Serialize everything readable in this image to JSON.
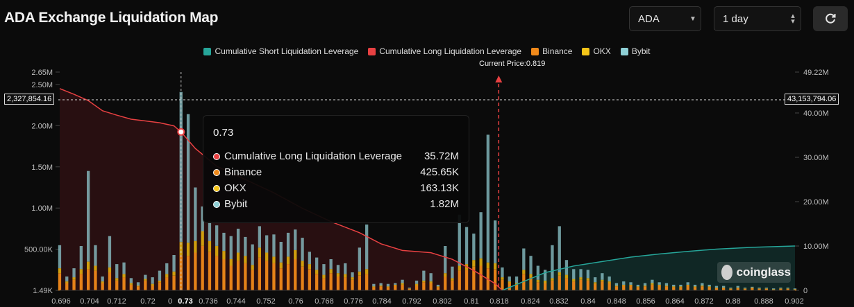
{
  "page_title": "ADA Exchange Liquidation Map",
  "controls": {
    "coin_select": "ADA",
    "period_select": "1 day"
  },
  "icons": {
    "refresh": "refresh-icon",
    "select_arrow": "chevron-down-icon",
    "stepper": "up-down-icon"
  },
  "legend": [
    {
      "label": "Cumulative Short Liquidation Leverage",
      "color": "#26a69a"
    },
    {
      "label": "Cumulative Long Liquidation Leverage",
      "color": "#e84142"
    },
    {
      "label": "Binance",
      "color": "#f0891a"
    },
    {
      "label": "OKX",
      "color": "#f5c518"
    },
    {
      "label": "Bybit",
      "color": "#8fd0d6"
    }
  ],
  "current_price_label": "Current Price:0.819",
  "crosshair": {
    "left_value": "2,327,854.16",
    "right_value": "43,153,794.06",
    "x_label": "0.73"
  },
  "tooltip": {
    "header": "0.73",
    "rows": [
      {
        "label": "Cumulative Long Liquidation Leverage",
        "value": "35.72M",
        "color": "#e84142"
      },
      {
        "label": "Binance",
        "value": "425.65K",
        "color": "#f0891a"
      },
      {
        "label": "OKX",
        "value": "163.13K",
        "color": "#f5c518"
      },
      {
        "label": "Bybit",
        "value": "1.82M",
        "color": "#8fd0d6"
      }
    ]
  },
  "watermark": "coinglass",
  "chart_data": {
    "type": "bar",
    "x_range": [
      0.696,
      0.902
    ],
    "x_tick_labels": [
      "0.696",
      "0.704",
      "0.712",
      "0.72",
      "0",
      "0.73",
      "0.736",
      "0.744",
      "0.752",
      "0.76",
      "0.768",
      "0.776",
      "0.784",
      "0.792",
      "0.802",
      "0.81",
      "0.818",
      "0.824",
      "0.832",
      "0.84",
      "0.848",
      "0.856",
      "0.864",
      "0.872",
      "0.88",
      "0.888",
      "0.902"
    ],
    "y_left_ticks": [
      "1.49K",
      "500.00K",
      "1.00M",
      "1.50M",
      "2.00M",
      "2.50M",
      "2.65M"
    ],
    "y_right_ticks": [
      "0",
      "10.00M",
      "20.00M",
      "30.00M",
      "40.00M",
      "49.22M"
    ],
    "y_left_range": [
      1490,
      2650000
    ],
    "y_right_range": [
      0,
      49220000
    ],
    "current_price": 0.819,
    "stack_order": [
      "Binance",
      "OKX",
      "Bybit"
    ],
    "bars": [
      {
        "x": 0.696,
        "binance": 210000,
        "okx": 60000,
        "bybit": 280000
      },
      {
        "x": 0.698,
        "binance": 90000,
        "okx": 20000,
        "bybit": 60000
      },
      {
        "x": 0.7,
        "binance": 130000,
        "okx": 30000,
        "bybit": 110000
      },
      {
        "x": 0.702,
        "binance": 200000,
        "okx": 60000,
        "bybit": 280000
      },
      {
        "x": 0.704,
        "binance": 260000,
        "okx": 90000,
        "bybit": 1100000
      },
      {
        "x": 0.706,
        "binance": 240000,
        "okx": 60000,
        "bybit": 250000
      },
      {
        "x": 0.708,
        "binance": 90000,
        "okx": 20000,
        "bybit": 60000
      },
      {
        "x": 0.71,
        "binance": 220000,
        "okx": 60000,
        "bybit": 380000
      },
      {
        "x": 0.712,
        "binance": 120000,
        "okx": 30000,
        "bybit": 170000
      },
      {
        "x": 0.714,
        "binance": 160000,
        "okx": 40000,
        "bybit": 140000
      },
      {
        "x": 0.716,
        "binance": 70000,
        "okx": 20000,
        "bybit": 60000
      },
      {
        "x": 0.718,
        "binance": 50000,
        "okx": 10000,
        "bybit": 40000
      },
      {
        "x": 0.72,
        "binance": 120000,
        "okx": 20000,
        "bybit": 50000
      },
      {
        "x": 0.722,
        "binance": 60000,
        "okx": 20000,
        "bybit": 80000
      },
      {
        "x": 0.724,
        "binance": 100000,
        "okx": 20000,
        "bybit": 120000
      },
      {
        "x": 0.726,
        "binance": 160000,
        "okx": 40000,
        "bybit": 130000
      },
      {
        "x": 0.728,
        "binance": 180000,
        "okx": 50000,
        "bybit": 200000
      },
      {
        "x": 0.73,
        "binance": 425650,
        "okx": 163130,
        "bybit": 1820000
      },
      {
        "x": 0.732,
        "binance": 420000,
        "okx": 160000,
        "bybit": 1560000
      },
      {
        "x": 0.734,
        "binance": 460000,
        "okx": 140000,
        "bybit": 650000
      },
      {
        "x": 0.736,
        "binance": 540000,
        "okx": 180000,
        "bybit": 300000
      },
      {
        "x": 0.738,
        "binance": 470000,
        "okx": 130000,
        "bybit": 240000
      },
      {
        "x": 0.74,
        "binance": 420000,
        "okx": 120000,
        "bybit": 250000
      },
      {
        "x": 0.742,
        "binance": 380000,
        "okx": 100000,
        "bybit": 220000
      },
      {
        "x": 0.744,
        "binance": 300000,
        "okx": 80000,
        "bybit": 280000
      },
      {
        "x": 0.746,
        "binance": 360000,
        "okx": 100000,
        "bybit": 290000
      },
      {
        "x": 0.748,
        "binance": 330000,
        "okx": 90000,
        "bybit": 230000
      },
      {
        "x": 0.75,
        "binance": 250000,
        "okx": 60000,
        "bybit": 250000
      },
      {
        "x": 0.752,
        "binance": 400000,
        "okx": 120000,
        "bybit": 260000
      },
      {
        "x": 0.754,
        "binance": 360000,
        "okx": 100000,
        "bybit": 210000
      },
      {
        "x": 0.756,
        "binance": 330000,
        "okx": 80000,
        "bybit": 270000
      },
      {
        "x": 0.758,
        "binance": 270000,
        "okx": 70000,
        "bybit": 250000
      },
      {
        "x": 0.76,
        "binance": 320000,
        "okx": 90000,
        "bybit": 290000
      },
      {
        "x": 0.762,
        "binance": 380000,
        "okx": 110000,
        "bybit": 250000
      },
      {
        "x": 0.764,
        "binance": 290000,
        "okx": 70000,
        "bybit": 280000
      },
      {
        "x": 0.766,
        "binance": 260000,
        "okx": 60000,
        "bybit": 150000
      },
      {
        "x": 0.768,
        "binance": 200000,
        "okx": 50000,
        "bybit": 150000
      },
      {
        "x": 0.77,
        "binance": 150000,
        "okx": 40000,
        "bybit": 130000
      },
      {
        "x": 0.772,
        "binance": 210000,
        "okx": 50000,
        "bybit": 120000
      },
      {
        "x": 0.774,
        "binance": 170000,
        "okx": 40000,
        "bybit": 100000
      },
      {
        "x": 0.776,
        "binance": 160000,
        "okx": 40000,
        "bybit": 130000
      },
      {
        "x": 0.778,
        "binance": 130000,
        "okx": 30000,
        "bybit": 60000
      },
      {
        "x": 0.78,
        "binance": 180000,
        "okx": 50000,
        "bybit": 290000
      },
      {
        "x": 0.782,
        "binance": 200000,
        "okx": 60000,
        "bybit": 540000
      },
      {
        "x": 0.784,
        "binance": 40000,
        "okx": 10000,
        "bybit": 30000
      },
      {
        "x": 0.786,
        "binance": 50000,
        "okx": 10000,
        "bybit": 30000
      },
      {
        "x": 0.788,
        "binance": 40000,
        "okx": 10000,
        "bybit": 30000
      },
      {
        "x": 0.79,
        "binance": 60000,
        "okx": 10000,
        "bybit": 20000
      },
      {
        "x": 0.792,
        "binance": 70000,
        "okx": 20000,
        "bybit": 40000
      },
      {
        "x": 0.794,
        "binance": 20000,
        "okx": 5000,
        "bybit": 10000
      },
      {
        "x": 0.796,
        "binance": 60000,
        "okx": 20000,
        "bybit": 40000
      },
      {
        "x": 0.798,
        "binance": 100000,
        "okx": 20000,
        "bybit": 120000
      },
      {
        "x": 0.8,
        "binance": 90000,
        "okx": 20000,
        "bybit": 100000
      },
      {
        "x": 0.802,
        "binance": 40000,
        "okx": 10000,
        "bybit": 20000
      },
      {
        "x": 0.804,
        "binance": 170000,
        "okx": 40000,
        "bybit": 330000
      },
      {
        "x": 0.806,
        "binance": 120000,
        "okx": 30000,
        "bybit": 140000
      },
      {
        "x": 0.808,
        "binance": 240000,
        "okx": 60000,
        "bybit": 620000
      },
      {
        "x": 0.81,
        "binance": 250000,
        "okx": 70000,
        "bybit": 450000
      },
      {
        "x": 0.812,
        "binance": 290000,
        "okx": 80000,
        "bybit": 320000
      },
      {
        "x": 0.814,
        "binance": 300000,
        "okx": 90000,
        "bybit": 560000
      },
      {
        "x": 0.816,
        "binance": 270000,
        "okx": 70000,
        "bybit": 1550000
      },
      {
        "x": 0.818,
        "binance": 260000,
        "okx": 70000,
        "bybit": 520000
      },
      {
        "x": 0.82,
        "binance": 130000,
        "okx": 30000,
        "bybit": 120000
      },
      {
        "x": 0.822,
        "binance": 90000,
        "okx": 20000,
        "bybit": 60000
      },
      {
        "x": 0.824,
        "binance": 70000,
        "okx": 20000,
        "bybit": 80000
      },
      {
        "x": 0.826,
        "binance": 200000,
        "okx": 50000,
        "bybit": 260000
      },
      {
        "x": 0.828,
        "binance": 160000,
        "okx": 40000,
        "bybit": 220000
      },
      {
        "x": 0.83,
        "binance": 100000,
        "okx": 30000,
        "bybit": 170000
      },
      {
        "x": 0.832,
        "binance": 90000,
        "okx": 30000,
        "bybit": 130000
      },
      {
        "x": 0.834,
        "binance": 120000,
        "okx": 30000,
        "bybit": 400000
      },
      {
        "x": 0.836,
        "binance": 180000,
        "okx": 40000,
        "bybit": 560000
      },
      {
        "x": 0.838,
        "binance": 150000,
        "okx": 40000,
        "bybit": 180000
      },
      {
        "x": 0.84,
        "binance": 110000,
        "okx": 30000,
        "bybit": 120000
      },
      {
        "x": 0.842,
        "binance": 130000,
        "okx": 30000,
        "bybit": 100000
      },
      {
        "x": 0.844,
        "binance": 120000,
        "okx": 30000,
        "bybit": 100000
      },
      {
        "x": 0.846,
        "binance": 80000,
        "okx": 20000,
        "bybit": 60000
      },
      {
        "x": 0.848,
        "binance": 110000,
        "okx": 20000,
        "bybit": 80000
      },
      {
        "x": 0.85,
        "binance": 90000,
        "okx": 20000,
        "bybit": 60000
      },
      {
        "x": 0.852,
        "binance": 50000,
        "okx": 10000,
        "bybit": 30000
      },
      {
        "x": 0.854,
        "binance": 60000,
        "okx": 10000,
        "bybit": 40000
      },
      {
        "x": 0.856,
        "binance": 60000,
        "okx": 10000,
        "bybit": 30000
      },
      {
        "x": 0.858,
        "binance": 40000,
        "okx": 10000,
        "bybit": 20000
      },
      {
        "x": 0.86,
        "binance": 50000,
        "okx": 10000,
        "bybit": 30000
      },
      {
        "x": 0.862,
        "binance": 70000,
        "okx": 20000,
        "bybit": 40000
      },
      {
        "x": 0.864,
        "binance": 60000,
        "okx": 10000,
        "bybit": 30000
      },
      {
        "x": 0.866,
        "binance": 50000,
        "okx": 10000,
        "bybit": 30000
      },
      {
        "x": 0.868,
        "binance": 40000,
        "okx": 10000,
        "bybit": 20000
      },
      {
        "x": 0.87,
        "binance": 40000,
        "okx": 10000,
        "bybit": 20000
      },
      {
        "x": 0.872,
        "binance": 60000,
        "okx": 10000,
        "bybit": 30000
      },
      {
        "x": 0.874,
        "binance": 40000,
        "okx": 10000,
        "bybit": 20000
      },
      {
        "x": 0.876,
        "binance": 50000,
        "okx": 10000,
        "bybit": 30000
      },
      {
        "x": 0.878,
        "binance": 40000,
        "okx": 10000,
        "bybit": 20000
      },
      {
        "x": 0.88,
        "binance": 30000,
        "okx": 5000,
        "bybit": 20000
      },
      {
        "x": 0.882,
        "binance": 30000,
        "okx": 5000,
        "bybit": 20000
      },
      {
        "x": 0.884,
        "binance": 20000,
        "okx": 5000,
        "bybit": 10000
      },
      {
        "x": 0.886,
        "binance": 30000,
        "okx": 5000,
        "bybit": 20000
      },
      {
        "x": 0.888,
        "binance": 20000,
        "okx": 5000,
        "bybit": 10000
      },
      {
        "x": 0.89,
        "binance": 30000,
        "okx": 5000,
        "bybit": 10000
      },
      {
        "x": 0.892,
        "binance": 20000,
        "okx": 5000,
        "bybit": 10000
      },
      {
        "x": 0.894,
        "binance": 20000,
        "okx": 5000,
        "bybit": 10000
      },
      {
        "x": 0.896,
        "binance": 10000,
        "okx": 5000,
        "bybit": 10000
      },
      {
        "x": 0.898,
        "binance": 20000,
        "okx": 5000,
        "bybit": 10000
      },
      {
        "x": 0.9,
        "binance": 20000,
        "okx": 5000,
        "bybit": 10000
      },
      {
        "x": 0.902,
        "binance": 10000,
        "okx": 5000,
        "bybit": 10000
      }
    ],
    "long_cumulative": [
      {
        "x": 0.696,
        "y": 45500000
      },
      {
        "x": 0.7,
        "y": 44200000
      },
      {
        "x": 0.704,
        "y": 42800000
      },
      {
        "x": 0.708,
        "y": 40500000
      },
      {
        "x": 0.712,
        "y": 39500000
      },
      {
        "x": 0.716,
        "y": 38600000
      },
      {
        "x": 0.72,
        "y": 38200000
      },
      {
        "x": 0.724,
        "y": 37800000
      },
      {
        "x": 0.728,
        "y": 37100000
      },
      {
        "x": 0.73,
        "y": 35720000
      },
      {
        "x": 0.734,
        "y": 32000000
      },
      {
        "x": 0.74,
        "y": 28000000
      },
      {
        "x": 0.748,
        "y": 25000000
      },
      {
        "x": 0.756,
        "y": 22000000
      },
      {
        "x": 0.764,
        "y": 18500000
      },
      {
        "x": 0.772,
        "y": 15500000
      },
      {
        "x": 0.78,
        "y": 13000000
      },
      {
        "x": 0.786,
        "y": 10500000
      },
      {
        "x": 0.792,
        "y": 9000000
      },
      {
        "x": 0.8,
        "y": 8500000
      },
      {
        "x": 0.806,
        "y": 7000000
      },
      {
        "x": 0.812,
        "y": 4500000
      },
      {
        "x": 0.818,
        "y": 1500000
      },
      {
        "x": 0.82,
        "y": 0
      }
    ],
    "short_cumulative": [
      {
        "x": 0.82,
        "y": 0
      },
      {
        "x": 0.826,
        "y": 2000000
      },
      {
        "x": 0.832,
        "y": 4000000
      },
      {
        "x": 0.84,
        "y": 5500000
      },
      {
        "x": 0.848,
        "y": 6500000
      },
      {
        "x": 0.856,
        "y": 7500000
      },
      {
        "x": 0.864,
        "y": 8200000
      },
      {
        "x": 0.872,
        "y": 8800000
      },
      {
        "x": 0.88,
        "y": 9300000
      },
      {
        "x": 0.89,
        "y": 9700000
      },
      {
        "x": 0.902,
        "y": 10000000
      }
    ]
  }
}
